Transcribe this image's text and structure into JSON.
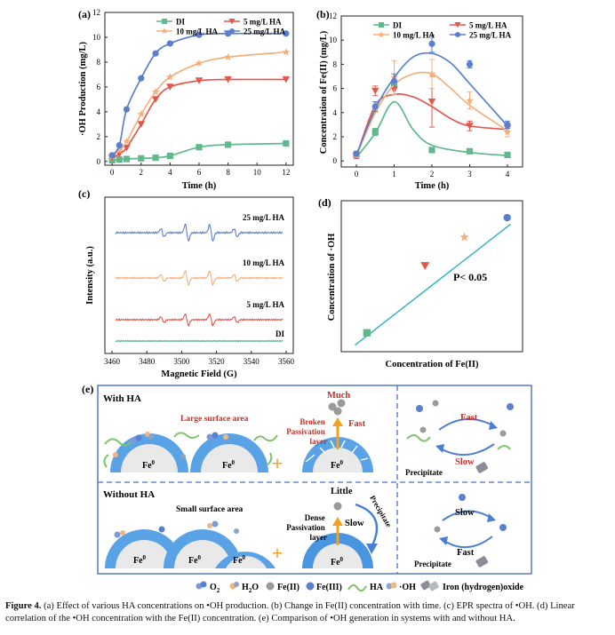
{
  "panel_labels": {
    "a": "(a)",
    "b": "(b)",
    "c": "(c)",
    "d": "(d)",
    "e": "(e)"
  },
  "colors": {
    "DI": "#5fb98a",
    "5 mg/L HA": "#e4574d",
    "10 mg/L HA": "#f4b07c",
    "25 mg/L HA": "#5b7fcf",
    "fit_line": "#36b7c2",
    "dashed_border": "#6f8fd6"
  },
  "chart_data": [
    {
      "panel": "a",
      "type": "line",
      "xlabel": "Time (h)",
      "ylabel": "·OH Production (mg/L)",
      "xlim": [
        -0.5,
        12.5
      ],
      "ylim": [
        -0.3,
        12
      ],
      "xticks": [
        0,
        2,
        4,
        6,
        8,
        10,
        12
      ],
      "yticks": [
        0,
        2,
        4,
        6,
        8,
        10,
        12
      ],
      "legend": [
        "DI",
        "5 mg/L HA",
        "10 mg/L HA",
        "25 mg/L HA"
      ],
      "series": [
        {
          "name": "DI",
          "x": [
            0,
            0.5,
            1,
            2,
            3,
            4,
            6,
            8,
            12
          ],
          "y": [
            0.1,
            0.15,
            0.2,
            0.25,
            0.3,
            0.45,
            1.15,
            1.35,
            1.45
          ]
        },
        {
          "name": "5 mg/L HA",
          "x": [
            0,
            0.5,
            1,
            2,
            3,
            4,
            6,
            8,
            12
          ],
          "y": [
            0.3,
            0.6,
            1.1,
            3.0,
            5.0,
            6.0,
            6.5,
            6.6,
            6.6
          ]
        },
        {
          "name": "10 mg/L HA",
          "x": [
            0,
            0.5,
            1,
            2,
            3,
            4,
            6,
            8,
            12
          ],
          "y": [
            0.4,
            0.9,
            1.6,
            3.8,
            5.6,
            6.8,
            7.9,
            8.4,
            8.8
          ]
        },
        {
          "name": "25 mg/L HA",
          "x": [
            0,
            0.5,
            1,
            2,
            3,
            4,
            6,
            8,
            12
          ],
          "y": [
            0.5,
            1.3,
            4.2,
            6.7,
            8.7,
            9.5,
            10.2,
            10.3,
            10.3
          ]
        }
      ]
    },
    {
      "panel": "b",
      "type": "line",
      "xlabel": "Time (h)",
      "ylabel": "Concentration of Fe(II) (mg/L)",
      "xlim": [
        -0.4,
        4.4
      ],
      "ylim": [
        -0.5,
        12
      ],
      "xticks": [
        0,
        1,
        2,
        3,
        4
      ],
      "yticks": [
        0,
        2,
        4,
        6,
        8,
        10,
        12
      ],
      "legend": [
        "DI",
        "5 mg/L HA",
        "10 mg/L HA",
        "25 mg/L HA"
      ],
      "series": [
        {
          "name": "DI",
          "x": [
            0,
            0.5,
            1,
            2,
            3,
            4
          ],
          "y": [
            0.5,
            2.4,
            6.3,
            0.9,
            0.8,
            0.5
          ],
          "err": [
            0.2,
            0.3,
            0.3,
            0.2,
            0.2,
            0.2
          ],
          "fit": [
            [
              0,
              0.3
            ],
            [
              0.5,
              2.3
            ],
            [
              1,
              4.9
            ],
            [
              1.5,
              2.6
            ],
            [
              2,
              1.3
            ],
            [
              3,
              0.7
            ],
            [
              4,
              0.45
            ]
          ]
        },
        {
          "name": "5 mg/L HA",
          "x": [
            0,
            0.5,
            1,
            2,
            3,
            4
          ],
          "y": [
            0.4,
            5.8,
            5.9,
            4.9,
            2.9,
            2.7
          ],
          "err": [
            0.2,
            0.4,
            0.4,
            2.1,
            0.4,
            0.3
          ],
          "fit": [
            [
              0,
              0.35
            ],
            [
              0.5,
              4.6
            ],
            [
              1,
              5.5
            ],
            [
              1.5,
              5.3
            ],
            [
              2,
              4.5
            ],
            [
              2.5,
              3.5
            ],
            [
              3,
              2.9
            ],
            [
              4,
              2.6
            ]
          ]
        },
        {
          "name": "10 mg/L HA",
          "x": [
            0,
            0.5,
            1,
            2,
            3,
            4
          ],
          "y": [
            0.5,
            4.4,
            6.9,
            7.2,
            5.0,
            2.4
          ],
          "err": [
            0.2,
            0.4,
            1.4,
            1.2,
            0.7,
            0.4
          ],
          "fit": [
            [
              0,
              0.4
            ],
            [
              0.5,
              4.0
            ],
            [
              1,
              6.3
            ],
            [
              1.5,
              7.2
            ],
            [
              2,
              7.2
            ],
            [
              2.5,
              6.0
            ],
            [
              3,
              4.6
            ],
            [
              4,
              2.5
            ]
          ]
        },
        {
          "name": "25 mg/L HA",
          "x": [
            0,
            0.5,
            1,
            2,
            3,
            4
          ],
          "y": [
            0.6,
            4.5,
            6.6,
            9.7,
            8.0,
            3.0
          ],
          "err": [
            0.2,
            0.4,
            0.6,
            0.7,
            0.3,
            0.3
          ],
          "fit": [
            [
              0,
              0.5
            ],
            [
              0.5,
              4.3
            ],
            [
              1,
              6.9
            ],
            [
              1.5,
              8.6
            ],
            [
              2,
              8.9
            ],
            [
              2.5,
              8.1
            ],
            [
              3,
              6.4
            ],
            [
              4,
              2.9
            ]
          ]
        }
      ]
    },
    {
      "panel": "c",
      "type": "line",
      "xlabel": "Magnetic Field (G)",
      "ylabel": "Intensity (a.u.)",
      "xlim": [
        3460,
        3560
      ],
      "xticks": [
        3460,
        3480,
        3500,
        3520,
        3540,
        3560
      ],
      "peak_fields": [
        3489,
        3503,
        3517,
        3531
      ],
      "peak_ratio": [
        1,
        2,
        2,
        1
      ],
      "series": [
        {
          "name": "25 mg/L HA",
          "amplitude": 1.0
        },
        {
          "name": "10 mg/L HA",
          "amplitude": 0.85
        },
        {
          "name": "5 mg/L HA",
          "amplitude": 0.7
        },
        {
          "name": "DI",
          "amplitude": 0.0
        }
      ]
    },
    {
      "panel": "d",
      "type": "scatter",
      "xlabel": "Concentration of Fe(II)",
      "ylabel": "Concentration of ·OH",
      "annotation": "P< 0.05",
      "points": [
        {
          "name": "DI",
          "x": 1.5,
          "y": 1.45,
          "marker": "square"
        },
        {
          "name": "5 mg/L HA",
          "x": 4.9,
          "y": 6.6,
          "marker": "triangle-down"
        },
        {
          "name": "10 mg/L HA",
          "x": 7.2,
          "y": 8.8,
          "marker": "star"
        },
        {
          "name": "25 mg/L HA",
          "x": 9.7,
          "y": 10.3,
          "marker": "circle"
        }
      ],
      "fit_line": [
        [
          0.8,
          0.5
        ],
        [
          9.9,
          9.8
        ]
      ]
    }
  ],
  "schematic": {
    "with_ha": "With HA",
    "without_ha": "Without HA",
    "large_surface": "Large surface area",
    "small_surface": "Small surface area",
    "fe0": "Fe",
    "fe0_sup": "0",
    "much": "Much",
    "fast": "Fast",
    "slow": "Slow",
    "little": "Little",
    "broken_layer": [
      "Broken",
      "Passivation",
      "layer"
    ],
    "dense_layer": [
      "Dense",
      "Passivation",
      "layer"
    ],
    "precipitate": "Precipitate",
    "plus": "+"
  },
  "legend_e": [
    {
      "label": "O",
      "sub": "2"
    },
    {
      "label": "H",
      "sub": "2",
      "tail": "O"
    },
    {
      "label": "Fe(II)"
    },
    {
      "label": "Fe(III)"
    },
    {
      "label": "HA"
    },
    {
      "label": "·OH"
    },
    {
      "label": "Iron (hydrogen)oxide"
    }
  ],
  "caption": {
    "lead": "Figure 4.",
    "text": " (a) Effect of various HA concentrations on •OH production. (b) Change in Fe(II) concentration with time. (c) EPR spectra of •OH. (d) Linear correlation of the •OH concentration with the Fe(II) concentration. (e) Comparison of •OH generation in systems with and without HA."
  }
}
